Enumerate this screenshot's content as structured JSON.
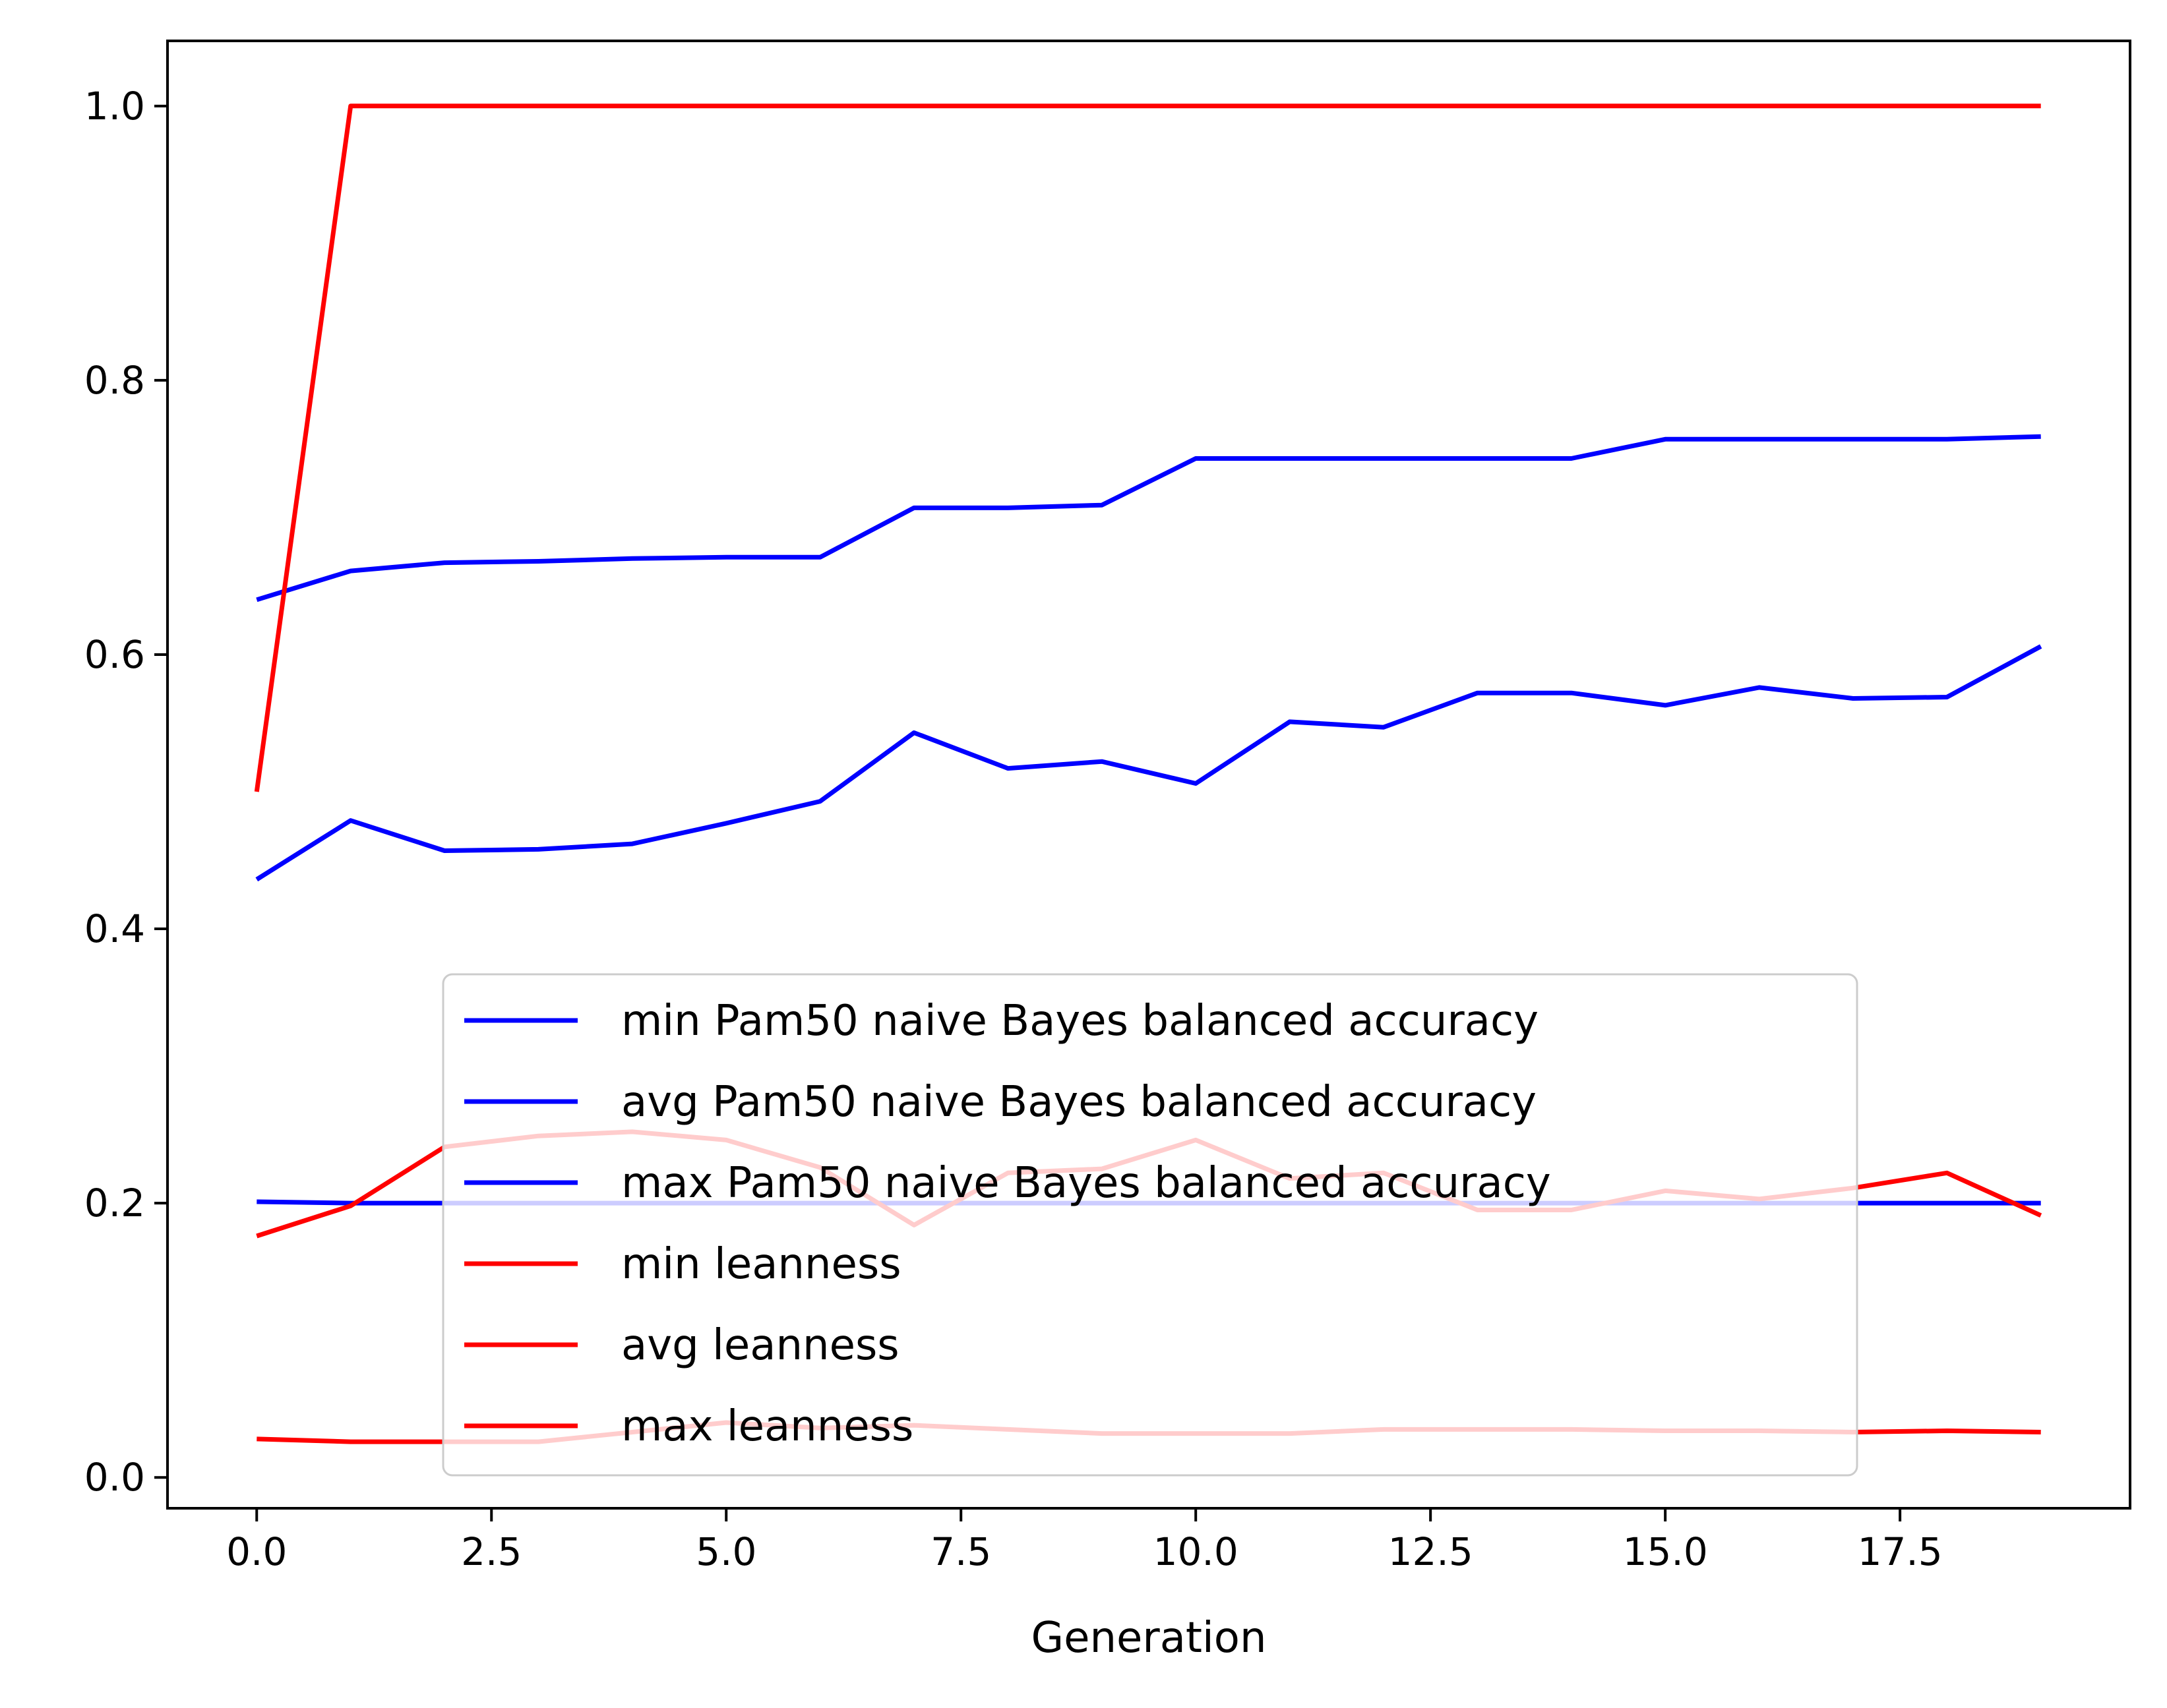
{
  "chart_data": {
    "type": "line",
    "title": "",
    "xlabel": "Generation",
    "ylabel": "",
    "xlim": [
      -0.95,
      19.95
    ],
    "ylim": [
      -0.0225,
      1.0475
    ],
    "xticks": [
      0.0,
      2.5,
      5.0,
      7.5,
      10.0,
      12.5,
      15.0,
      17.5
    ],
    "xtick_labels": [
      "0.0",
      "2.5",
      "5.0",
      "7.5",
      "10.0",
      "12.5",
      "15.0",
      "17.5"
    ],
    "yticks": [
      0.0,
      0.2,
      0.4,
      0.6,
      0.8,
      1.0
    ],
    "ytick_labels": [
      "0.0",
      "0.2",
      "0.4",
      "0.6",
      "0.8",
      "1.0"
    ],
    "grid": false,
    "legend_position": "lower-center",
    "x": [
      0,
      1,
      2,
      3,
      4,
      5,
      6,
      7,
      8,
      9,
      10,
      11,
      12,
      13,
      14,
      15,
      16,
      17,
      18,
      19
    ],
    "series": [
      {
        "name": "min Pam50 naive Bayes balanced accuracy",
        "color": "#0000ff",
        "values": [
          0.201,
          0.2,
          0.2,
          0.2,
          0.2,
          0.2,
          0.2,
          0.2,
          0.2,
          0.2,
          0.2,
          0.2,
          0.2,
          0.2,
          0.2,
          0.2,
          0.2,
          0.2,
          0.2,
          0.2
        ]
      },
      {
        "name": "avg Pam50 naive Bayes balanced accuracy",
        "color": "#0000ff",
        "values": [
          0.436,
          0.479,
          0.457,
          0.458,
          0.462,
          0.477,
          0.493,
          0.543,
          0.517,
          0.522,
          0.506,
          0.551,
          0.547,
          0.572,
          0.572,
          0.563,
          0.576,
          0.568,
          0.569,
          0.606
        ]
      },
      {
        "name": "max Pam50 naive Bayes balanced accuracy",
        "color": "#0000ff",
        "values": [
          0.64,
          0.661,
          0.667,
          0.668,
          0.67,
          0.671,
          0.671,
          0.707,
          0.707,
          0.709,
          0.743,
          0.743,
          0.743,
          0.743,
          0.743,
          0.757,
          0.757,
          0.757,
          0.757,
          0.759
        ]
      },
      {
        "name": "min leanness",
        "color": "#ff0000",
        "values": [
          0.028,
          0.026,
          0.026,
          0.026,
          0.033,
          0.04,
          0.036,
          0.038,
          0.035,
          0.032,
          0.032,
          0.032,
          0.035,
          0.035,
          0.035,
          0.034,
          0.034,
          0.033,
          0.034,
          0.033
        ]
      },
      {
        "name": "avg leanness",
        "color": "#ff0000",
        "values": [
          0.176,
          0.198,
          0.241,
          0.249,
          0.252,
          0.246,
          0.226,
          0.184,
          0.222,
          0.225,
          0.246,
          0.218,
          0.222,
          0.195,
          0.195,
          0.209,
          0.203,
          0.211,
          0.222,
          0.191
        ]
      },
      {
        "name": "max leanness",
        "color": "#ff0000",
        "values": [
          0.5,
          1.0,
          1.0,
          1.0,
          1.0,
          1.0,
          1.0,
          1.0,
          1.0,
          1.0,
          1.0,
          1.0,
          1.0,
          1.0,
          1.0,
          1.0,
          1.0,
          1.0,
          1.0,
          1.0
        ]
      }
    ]
  }
}
